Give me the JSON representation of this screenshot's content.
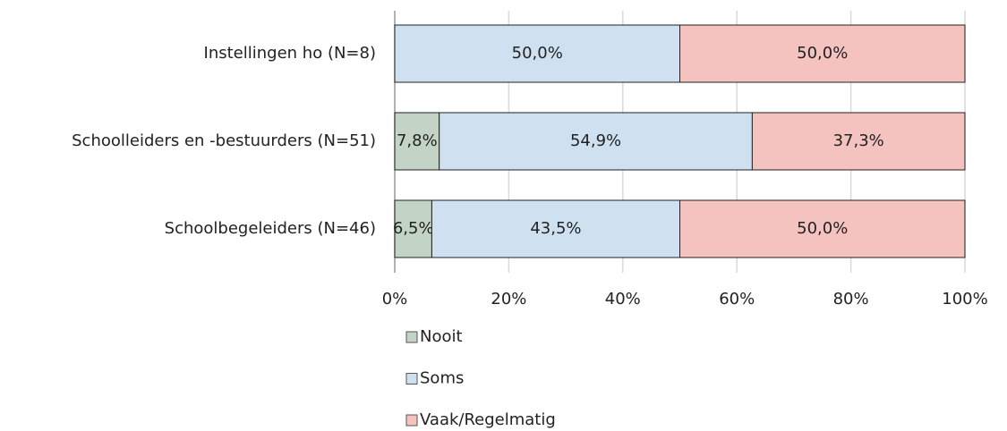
{
  "chart_data": {
    "type": "stacked-bar-horizontal",
    "categories": [
      "Instellingen ho (N=8)",
      "Schoolleiders en -bestuurders (N=51)",
      "Schoolbegeleiders (N=46)"
    ],
    "series": [
      {
        "name": "Nooit",
        "color": "#c3d3c5",
        "values": [
          null,
          7.8,
          6.5
        ],
        "value_labels": [
          null,
          "7,8%",
          "6,5%"
        ]
      },
      {
        "name": "Soms",
        "color": "#cfe0f1",
        "values": [
          50.0,
          54.9,
          43.5
        ],
        "value_labels": [
          "50,0%",
          "54,9%",
          "43,5%"
        ]
      },
      {
        "name": "Vaak/Regelmatig",
        "color": "#f4c2bf",
        "values": [
          50.0,
          37.3,
          50.0
        ],
        "value_labels": [
          "50,0%",
          "37,3%",
          "50,0%"
        ]
      }
    ],
    "xlim": [
      0,
      100
    ],
    "xticks": [
      {
        "value": 0,
        "label": "0%"
      },
      {
        "value": 20,
        "label": "20%"
      },
      {
        "value": 40,
        "label": "40%"
      },
      {
        "value": 60,
        "label": "60%"
      },
      {
        "value": 80,
        "label": "80%"
      },
      {
        "value": 100,
        "label": "100%"
      }
    ],
    "grid": true,
    "legend": "bottom"
  }
}
